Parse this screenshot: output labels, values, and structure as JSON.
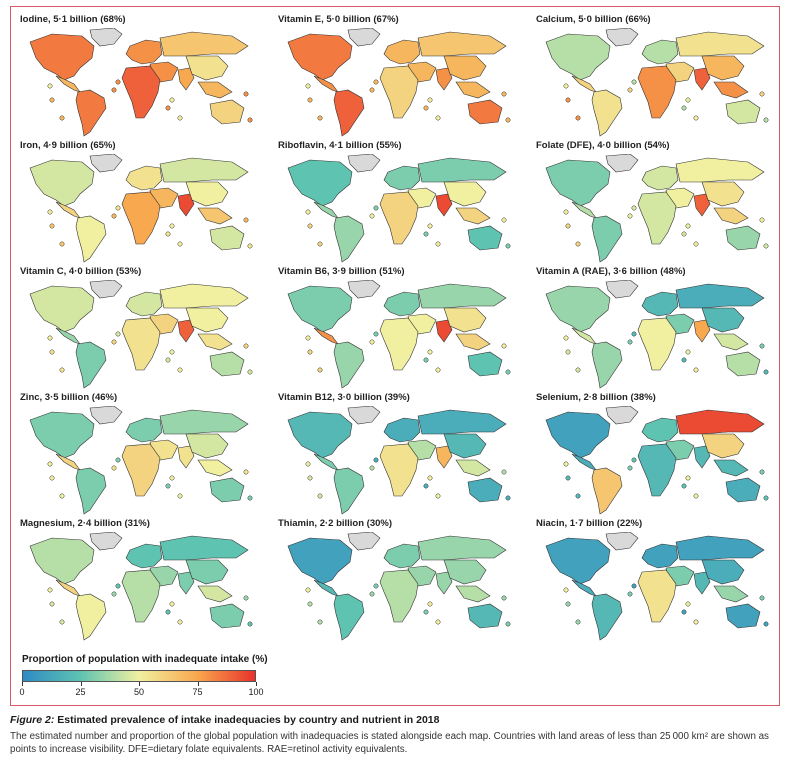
{
  "panels": [
    {
      "title": "Iodine, 5·1 billion (68%)",
      "levels": {
        "na": 0.85,
        "greenland": -1,
        "ca": 0.7,
        "sa": 0.85,
        "eu": 0.8,
        "ru": 0.65,
        "af": 0.9,
        "me": 0.8,
        "in": 0.75,
        "cn": 0.55,
        "sea": 0.7,
        "au": 0.6
      }
    },
    {
      "title": "Vitamin E, 5·0 billion (67%)",
      "levels": {
        "na": 0.85,
        "greenland": -1,
        "ca": 0.8,
        "sa": 0.9,
        "eu": 0.7,
        "ru": 0.65,
        "af": 0.6,
        "me": 0.7,
        "in": 0.8,
        "cn": 0.7,
        "sea": 0.7,
        "au": 0.85
      }
    },
    {
      "title": "Calcium, 5·0 billion (66%)",
      "levels": {
        "na": 0.4,
        "greenland": -1,
        "ca": 0.6,
        "sa": 0.55,
        "eu": 0.4,
        "ru": 0.55,
        "af": 0.8,
        "me": 0.6,
        "in": 0.9,
        "cn": 0.7,
        "sea": 0.8,
        "au": 0.45
      }
    },
    {
      "title": "Iron, 4·9 billion (65%)",
      "levels": {
        "na": 0.45,
        "greenland": -1,
        "ca": 0.6,
        "sa": 0.5,
        "eu": 0.55,
        "ru": 0.45,
        "af": 0.75,
        "me": 0.7,
        "in": 0.95,
        "cn": 0.5,
        "sea": 0.65,
        "au": 0.45
      }
    },
    {
      "title": "Riboflavin, 4·1 billion (55%)",
      "levels": {
        "na": 0.25,
        "greenland": -1,
        "ca": 0.35,
        "sa": 0.35,
        "eu": 0.3,
        "ru": 0.3,
        "af": 0.6,
        "me": 0.5,
        "in": 0.95,
        "cn": 0.5,
        "sea": 0.6,
        "au": 0.25
      }
    },
    {
      "title": "Folate (DFE), 4·0 billion (54%)",
      "levels": {
        "na": 0.3,
        "greenland": -1,
        "ca": 0.4,
        "sa": 0.3,
        "eu": 0.45,
        "ru": 0.5,
        "af": 0.45,
        "me": 0.5,
        "in": 0.9,
        "cn": 0.55,
        "sea": 0.6,
        "au": 0.35
      }
    },
    {
      "title": "Vitamin C, 4·0 billion (53%)",
      "levels": {
        "na": 0.45,
        "greenland": -1,
        "ca": 0.35,
        "sa": 0.3,
        "eu": 0.45,
        "ru": 0.5,
        "af": 0.55,
        "me": 0.6,
        "in": 0.9,
        "cn": 0.5,
        "sea": 0.55,
        "au": 0.4
      }
    },
    {
      "title": "Vitamin B6, 3·9 billion (51%)",
      "levels": {
        "na": 0.3,
        "greenland": -1,
        "ca": 0.8,
        "sa": 0.35,
        "eu": 0.3,
        "ru": 0.35,
        "af": 0.5,
        "me": 0.5,
        "in": 0.95,
        "cn": 0.55,
        "sea": 0.6,
        "au": 0.25
      }
    },
    {
      "title": "Vitamin A (RAE), 3·6 billion (48%)",
      "levels": {
        "na": 0.35,
        "greenland": -1,
        "ca": 0.45,
        "sa": 0.35,
        "eu": 0.2,
        "ru": 0.15,
        "af": 0.5,
        "me": 0.3,
        "in": 0.75,
        "cn": 0.2,
        "sea": 0.45,
        "au": 0.4
      }
    },
    {
      "title": "Zinc, 3·5 billion (46%)",
      "levels": {
        "na": 0.3,
        "greenland": -1,
        "ca": 0.6,
        "sa": 0.3,
        "eu": 0.3,
        "ru": 0.35,
        "af": 0.6,
        "me": 0.55,
        "in": 0.55,
        "cn": 0.45,
        "sea": 0.5,
        "au": 0.3
      }
    },
    {
      "title": "Vitamin B12, 3·0 billion (39%)",
      "levels": {
        "na": 0.2,
        "greenland": -1,
        "ca": 0.3,
        "sa": 0.3,
        "eu": 0.15,
        "ru": 0.15,
        "af": 0.55,
        "me": 0.4,
        "in": 0.7,
        "cn": 0.2,
        "sea": 0.45,
        "au": 0.15
      }
    },
    {
      "title": "Selenium, 2·8 billion (38%)",
      "levels": {
        "na": 0.1,
        "greenland": -1,
        "ca": 0.15,
        "sa": 0.65,
        "eu": 0.25,
        "ru": 0.95,
        "af": 0.2,
        "me": 0.3,
        "in": 0.2,
        "cn": 0.6,
        "sea": 0.2,
        "au": 0.15
      }
    },
    {
      "title": "Magnesium, 2·4 billion (31%)",
      "levels": {
        "na": 0.4,
        "greenland": -1,
        "ca": 0.6,
        "sa": 0.5,
        "eu": 0.25,
        "ru": 0.25,
        "af": 0.4,
        "me": 0.35,
        "in": 0.3,
        "cn": 0.3,
        "sea": 0.45,
        "au": 0.3
      }
    },
    {
      "title": "Thiamin, 2·2 billion (30%)",
      "levels": {
        "na": 0.1,
        "greenland": -1,
        "ca": 0.2,
        "sa": 0.25,
        "eu": 0.3,
        "ru": 0.35,
        "af": 0.4,
        "me": 0.35,
        "in": 0.35,
        "cn": 0.35,
        "sea": 0.4,
        "au": 0.2
      }
    },
    {
      "title": "Niacin, 1·7 billion (22%)",
      "levels": {
        "na": 0.1,
        "greenland": -1,
        "ca": 0.15,
        "sa": 0.2,
        "eu": 0.1,
        "ru": 0.1,
        "af": 0.55,
        "me": 0.3,
        "in": 0.2,
        "cn": 0.15,
        "sea": 0.35,
        "au": 0.1
      }
    }
  ],
  "legend": {
    "title": "Proportion of population with inadequate intake (%)",
    "ticks": [
      "0",
      "25",
      "50",
      "75",
      "100"
    ],
    "colors": [
      "#2e8bc4",
      "#5fc3b1",
      "#f0f0a0",
      "#f8a84e",
      "#e8322c"
    ]
  },
  "caption": {
    "figure_label": "Figure 2:",
    "title": "Estimated prevalence of intake inadequacies by country and nutrient in 2018",
    "body": "The estimated number and proportion of the global population with inadequacies is stated alongside each map. Countries with land areas of less than 25 000 km² are shown as points to increase visibility. DFE=dietary folate equivalents. RAE=retinol activity equivalents."
  }
}
